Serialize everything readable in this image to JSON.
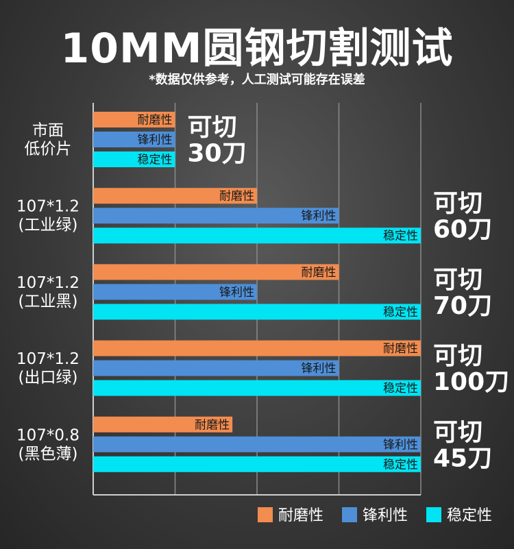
{
  "header": {
    "title": "10MM圆钢切割测试",
    "subtitle": "*数据仅供参考，人工测试可能存在误差"
  },
  "colors": {
    "耐磨性": "#f28c4f",
    "锋利性": "#4e8fd8",
    "稳定性": "#00e4f4",
    "grid": "#8a8a8a",
    "axis": "#d0d0d0"
  },
  "chart_data": {
    "type": "bar",
    "orientation": "horizontal",
    "title": "10MM圆钢切割测试",
    "categories": [
      [
        "市面",
        "低价片"
      ],
      [
        "107*1.2",
        "(工业绿)"
      ],
      [
        "107*1.2",
        "(工业黑)"
      ],
      [
        "107*1.2",
        "(出口绿)"
      ],
      [
        "107*0.8",
        "(黑色薄)"
      ]
    ],
    "series": [
      {
        "name": "耐磨性",
        "values": [
          1,
          2,
          3,
          4,
          1.7
        ]
      },
      {
        "name": "锋利性",
        "values": [
          1,
          3,
          2,
          3,
          4
        ]
      },
      {
        "name": "稳定性",
        "values": [
          1,
          4,
          4,
          4,
          4
        ]
      }
    ],
    "annotations": [
      [
        "可切",
        "30刀"
      ],
      [
        "可切",
        "60刀"
      ],
      [
        "可切",
        "70刀"
      ],
      [
        "可切",
        "100刀"
      ],
      [
        "可切",
        "45刀"
      ]
    ],
    "xlim": [
      0,
      4
    ],
    "grid": true,
    "legend_position": "bottom-right"
  }
}
